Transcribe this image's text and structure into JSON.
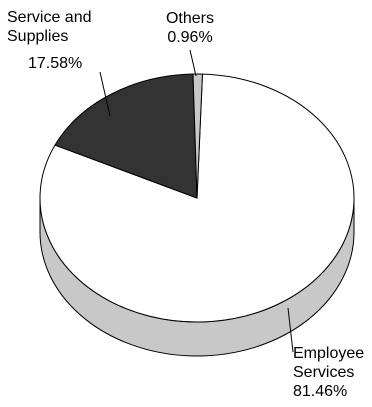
{
  "chart_data": {
    "type": "pie",
    "style": "3d",
    "title": "",
    "series": [
      {
        "name_lines": [
          "Employee",
          "Services"
        ],
        "value": 81.46,
        "value_label": "81.46%",
        "color": "#ffffff",
        "side_color": "#c8c8c8"
      },
      {
        "name_lines": [
          "Service and",
          "Supplies"
        ],
        "value": 17.58,
        "value_label": "17.58%",
        "color": "#333333",
        "side_color": "#333333"
      },
      {
        "name_lines": [
          "Others"
        ],
        "value": 0.96,
        "value_label": "0.96%",
        "color": "#c8c8c8",
        "side_color": "#c8c8c8"
      }
    ],
    "legend": "none"
  }
}
